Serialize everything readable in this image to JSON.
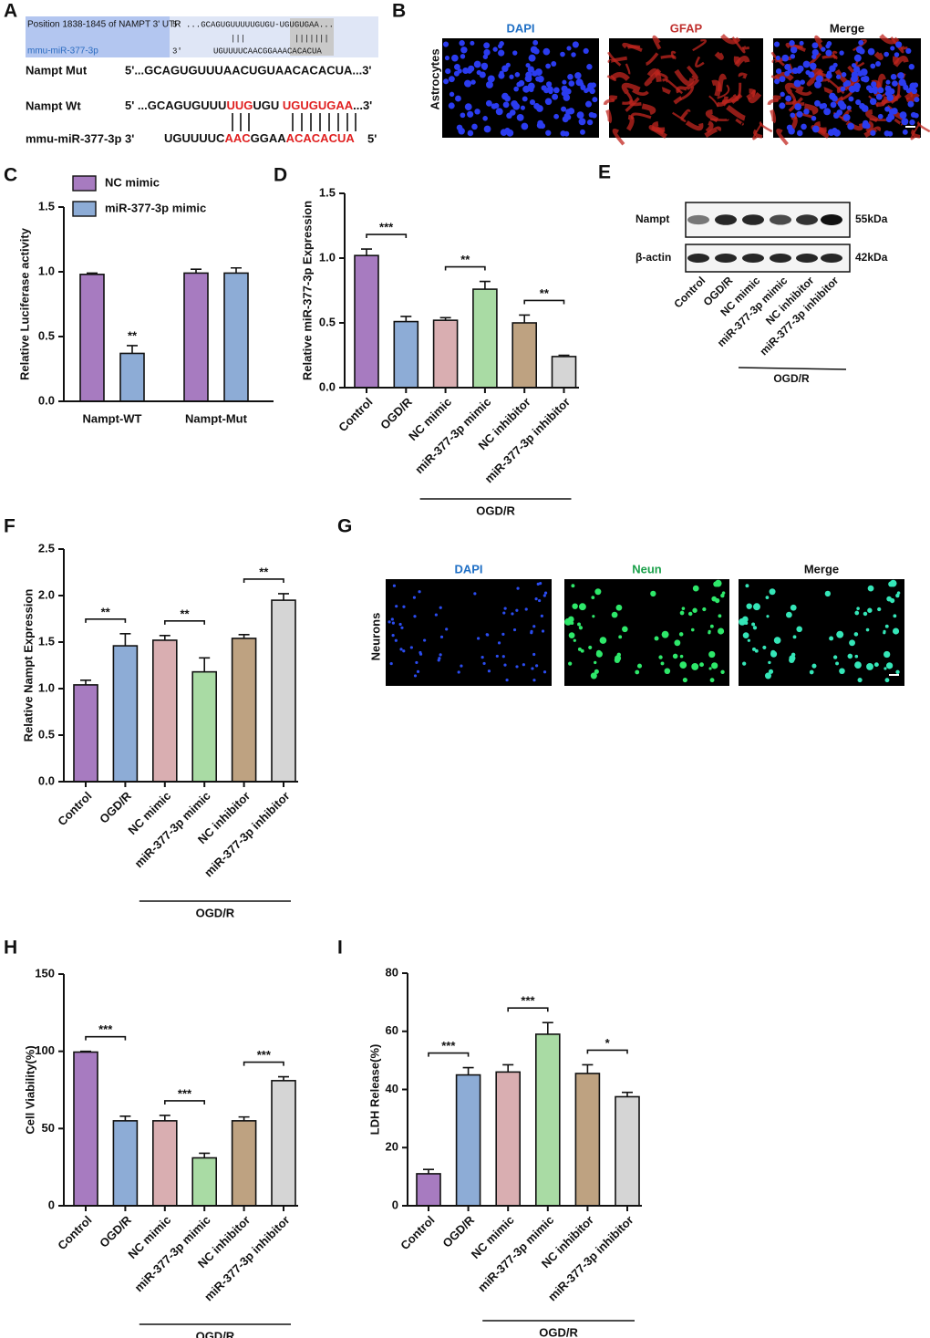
{
  "alignment": {
    "panel": "A",
    "header": "Position 1838-1845 of NAMPT 3' UTR",
    "top_five": "5'",
    "top_seq": "...GCAGUGUUUUUGUGU-UGUGUGAA...",
    "pairs_left": "|||",
    "pairs_right": "|||||||",
    "mirna_name": "mmu-miR-377-3p",
    "bottom_three": "3'",
    "bottom_seq": "UGUUUUCAACGGAAACACACUA",
    "mut_name": "Nampt Mut",
    "mut_seq": "5'...GCAGUGUUUAACUGUAACACACUA...3'",
    "wt_name": "Nampt Wt",
    "wt_segments": [
      {
        "text": "5' ...GCAGUGUUU",
        "color": "#111111"
      },
      {
        "text": "UUG",
        "color": "#e02020"
      },
      {
        "text": "UGU ",
        "color": "#111111"
      },
      {
        "text": "UGUGUGAA",
        "color": "#e02020"
      },
      {
        "text": "...3'",
        "color": "#111111"
      }
    ],
    "mir_name": "mmu-miR-377-3p",
    "mir_three": "3'",
    "mir_segments": [
      {
        "text": "UGUUUUC",
        "color": "#111111"
      },
      {
        "text": "AAC",
        "color": "#e02020"
      },
      {
        "text": "GGAA",
        "color": "#111111"
      },
      {
        "text": "ACACACUA",
        "color": "#e02020"
      }
    ],
    "mir_five": "5'"
  },
  "astrocytes": {
    "panel": "B",
    "row_label": "Astrocytes",
    "columns": [
      {
        "title": "DAPI",
        "color": "#1f6fc5"
      },
      {
        "title": "GFAP",
        "color": "#c0302e"
      },
      {
        "title": "Merge",
        "color": "#111111"
      }
    ]
  },
  "western": {
    "panel": "E",
    "rows": [
      {
        "protein": "Nampt",
        "size": "55kDa"
      },
      {
        "protein": "β-actin",
        "size": "42kDa"
      }
    ],
    "lanes": [
      "Control",
      "OGD/R",
      "NC mimic",
      "miR-377-3p mimic",
      "NC inhibitor",
      "miR-377-3p inhibitor"
    ],
    "group_label": "OGD/R"
  },
  "neurons": {
    "panel": "G",
    "row_label": "Neurons",
    "columns": [
      {
        "title": "DAPI",
        "color": "#1f6fc5"
      },
      {
        "title": "Neun",
        "color": "#1aa04a"
      },
      {
        "title": "Merge",
        "color": "#111111"
      }
    ]
  },
  "chart_data": [
    {
      "type": "grouped-bar",
      "panel": "C",
      "ylabel": "Relative Luciferase activity",
      "categories": [
        "Nampt-WT",
        "Nampt-Mut"
      ],
      "series": [
        {
          "name": "NC mimic",
          "color": "#a77bc0",
          "values": [
            0.98,
            0.99
          ],
          "errors": [
            0.01,
            0.03
          ]
        },
        {
          "name": "miR-377-3p mimic",
          "color": "#8dacd6",
          "values": [
            0.37,
            0.99
          ],
          "errors": [
            0.06,
            0.04
          ]
        }
      ],
      "annotations": [
        "**"
      ],
      "legend": "top-left",
      "ylim": [
        0,
        1.5
      ],
      "yticks": [
        {
          "value": 0,
          "label": "0.0"
        },
        {
          "value": 0.5,
          "label": "0.5"
        },
        {
          "value": 1,
          "label": "1.0"
        },
        {
          "value": 1.5,
          "label": "1.5"
        }
      ]
    },
    {
      "type": "bar",
      "panel": "D",
      "ylabel": "Relative miR-377-3p Expression",
      "categories": [
        "Control",
        "OGD/R",
        "NC mimic",
        "miR-377-3p mimic",
        "NC inhibitor",
        "miR-377-3p inhibitor"
      ],
      "values": [
        1.02,
        0.51,
        0.52,
        0.76,
        0.5,
        0.24
      ],
      "errors": [
        0.05,
        0.04,
        0.02,
        0.06,
        0.06,
        0.01
      ],
      "colors": [
        "#a77bc0",
        "#8dacd6",
        "#d9aeb1",
        "#a9dba4",
        "#bea281",
        "#d5d5d5"
      ],
      "annotations": [
        "***",
        "**",
        "**"
      ],
      "group_label": "OGD/R",
      "ylim": [
        0,
        1.5
      ],
      "yticks": [
        {
          "value": 0,
          "label": "0.0"
        },
        {
          "value": 0.5,
          "label": "0.5"
        },
        {
          "value": 1,
          "label": "1.0"
        },
        {
          "value": 1.5,
          "label": "1.5"
        }
      ]
    },
    {
      "type": "bar",
      "panel": "F",
      "ylabel": "Relative Nampt Expression",
      "categories": [
        "Control",
        "OGD/R",
        "NC mimic",
        "miR-377-3p mimic",
        "NC inhibitor",
        "miR-377-3p inhibitor"
      ],
      "values": [
        1.04,
        1.46,
        1.52,
        1.18,
        1.54,
        1.95
      ],
      "errors": [
        0.05,
        0.13,
        0.05,
        0.15,
        0.04,
        0.07
      ],
      "colors": [
        "#a77bc0",
        "#8dacd6",
        "#d9aeb1",
        "#a9dba4",
        "#bea281",
        "#d5d5d5"
      ],
      "annotations": [
        "**",
        "**",
        "**"
      ],
      "group_label": "OGD/R",
      "ylim": [
        0,
        2.5
      ],
      "yticks": [
        {
          "value": 0,
          "label": "0.0"
        },
        {
          "value": 0.5,
          "label": "0.5"
        },
        {
          "value": 1,
          "label": "1.0"
        },
        {
          "value": 1.5,
          "label": "1.5"
        },
        {
          "value": 2,
          "label": "2.0"
        },
        {
          "value": 2.5,
          "label": "2.5"
        }
      ]
    },
    {
      "type": "bar",
      "panel": "H",
      "ylabel": "Cell Viability(%)",
      "categories": [
        "Control",
        "OGD/R",
        "NC mimic",
        "miR-377-3p mimic",
        "NC inhibitor",
        "miR-377-3p inhibitor"
      ],
      "values": [
        99.5,
        55,
        55,
        31,
        55,
        81
      ],
      "errors": [
        0.5,
        3,
        3.5,
        3,
        2.5,
        2.5
      ],
      "colors": [
        "#a77bc0",
        "#8dacd6",
        "#d9aeb1",
        "#a9dba4",
        "#bea281",
        "#d5d5d5"
      ],
      "annotations": [
        "***",
        "***",
        "***"
      ],
      "group_label": "OGD/R",
      "ylim": [
        0,
        150
      ],
      "yticks": [
        0,
        50,
        100,
        150
      ]
    },
    {
      "type": "bar",
      "panel": "I",
      "ylabel": "LDH Release(%)",
      "categories": [
        "Control",
        "OGD/R",
        "NC mimic",
        "miR-377-3p mimic",
        "NC inhibitor",
        "miR-377-3p inhibitor"
      ],
      "values": [
        11,
        45,
        46,
        59,
        45.5,
        37.5
      ],
      "errors": [
        1.5,
        2.5,
        2.5,
        4,
        3,
        1.5
      ],
      "colors": [
        "#a77bc0",
        "#8dacd6",
        "#d9aeb1",
        "#a9dba4",
        "#bea281",
        "#d5d5d5"
      ],
      "annotations": [
        "***",
        "***",
        "*"
      ],
      "group_label": "OGD/R",
      "ylim": [
        0,
        80
      ],
      "yticks": [
        0,
        20,
        40,
        60,
        80
      ]
    }
  ]
}
